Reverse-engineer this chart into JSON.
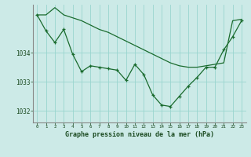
{
  "background_color": "#cceae7",
  "grid_color": "#99d5cf",
  "line_color": "#1a6b2e",
  "title": "Graphe pression niveau de la mer (hPa)",
  "xlabel_ticks": [
    0,
    1,
    2,
    3,
    4,
    5,
    6,
    7,
    8,
    9,
    10,
    11,
    12,
    13,
    14,
    15,
    16,
    17,
    18,
    19,
    20,
    21,
    22,
    23
  ],
  "ylim": [
    1031.6,
    1035.65
  ],
  "yticks": [
    1032,
    1033,
    1034
  ],
  "series1_x": [
    0,
    1,
    2,
    3,
    4,
    5,
    6,
    7,
    8,
    9,
    10,
    11,
    12,
    13,
    14,
    15,
    16,
    17,
    18,
    19,
    20,
    21,
    22,
    23
  ],
  "series1_y": [
    1035.3,
    1035.3,
    1035.55,
    1035.3,
    1035.2,
    1035.1,
    1034.95,
    1034.8,
    1034.7,
    1034.55,
    1034.4,
    1034.25,
    1034.1,
    1033.95,
    1033.8,
    1033.65,
    1033.55,
    1033.5,
    1033.5,
    1033.55,
    1033.6,
    1033.65,
    1035.1,
    1035.15
  ],
  "series2_x": [
    0,
    1,
    2,
    3,
    4,
    5,
    6,
    7,
    8,
    9,
    10,
    11,
    12,
    13,
    14,
    15,
    16,
    17,
    18,
    19,
    20,
    21,
    22,
    23
  ],
  "series2_y": [
    1035.3,
    1034.75,
    1034.35,
    1034.8,
    1033.95,
    1033.35,
    1033.55,
    1033.5,
    1033.45,
    1033.4,
    1033.05,
    1033.6,
    1033.25,
    1032.55,
    1032.2,
    1032.15,
    1032.5,
    1032.85,
    1033.15,
    1033.5,
    1033.5,
    1034.1,
    1034.55,
    1035.1
  ]
}
